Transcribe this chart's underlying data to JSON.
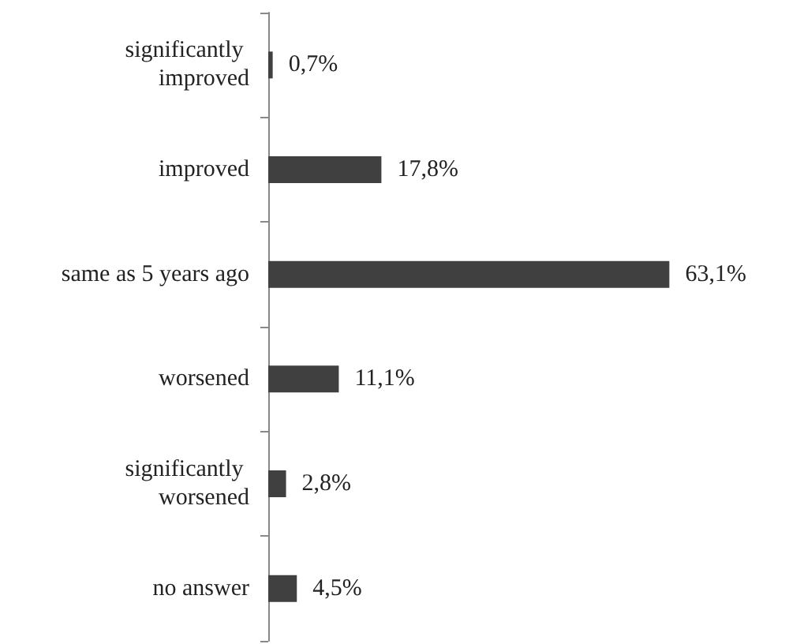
{
  "chart_data": {
    "type": "bar",
    "orientation": "horizontal",
    "categories": [
      "significantly improved",
      "improved",
      "same as 5 years ago",
      "worsened",
      "significantly worsened",
      "no answer"
    ],
    "values": [
      0.7,
      17.8,
      63.1,
      11.1,
      2.8,
      4.5
    ],
    "color": "#404040",
    "value_labels": [
      "0,7%",
      "17,8%",
      "63,1%",
      "11,1%",
      "2,8%",
      "4,5%"
    ]
  }
}
